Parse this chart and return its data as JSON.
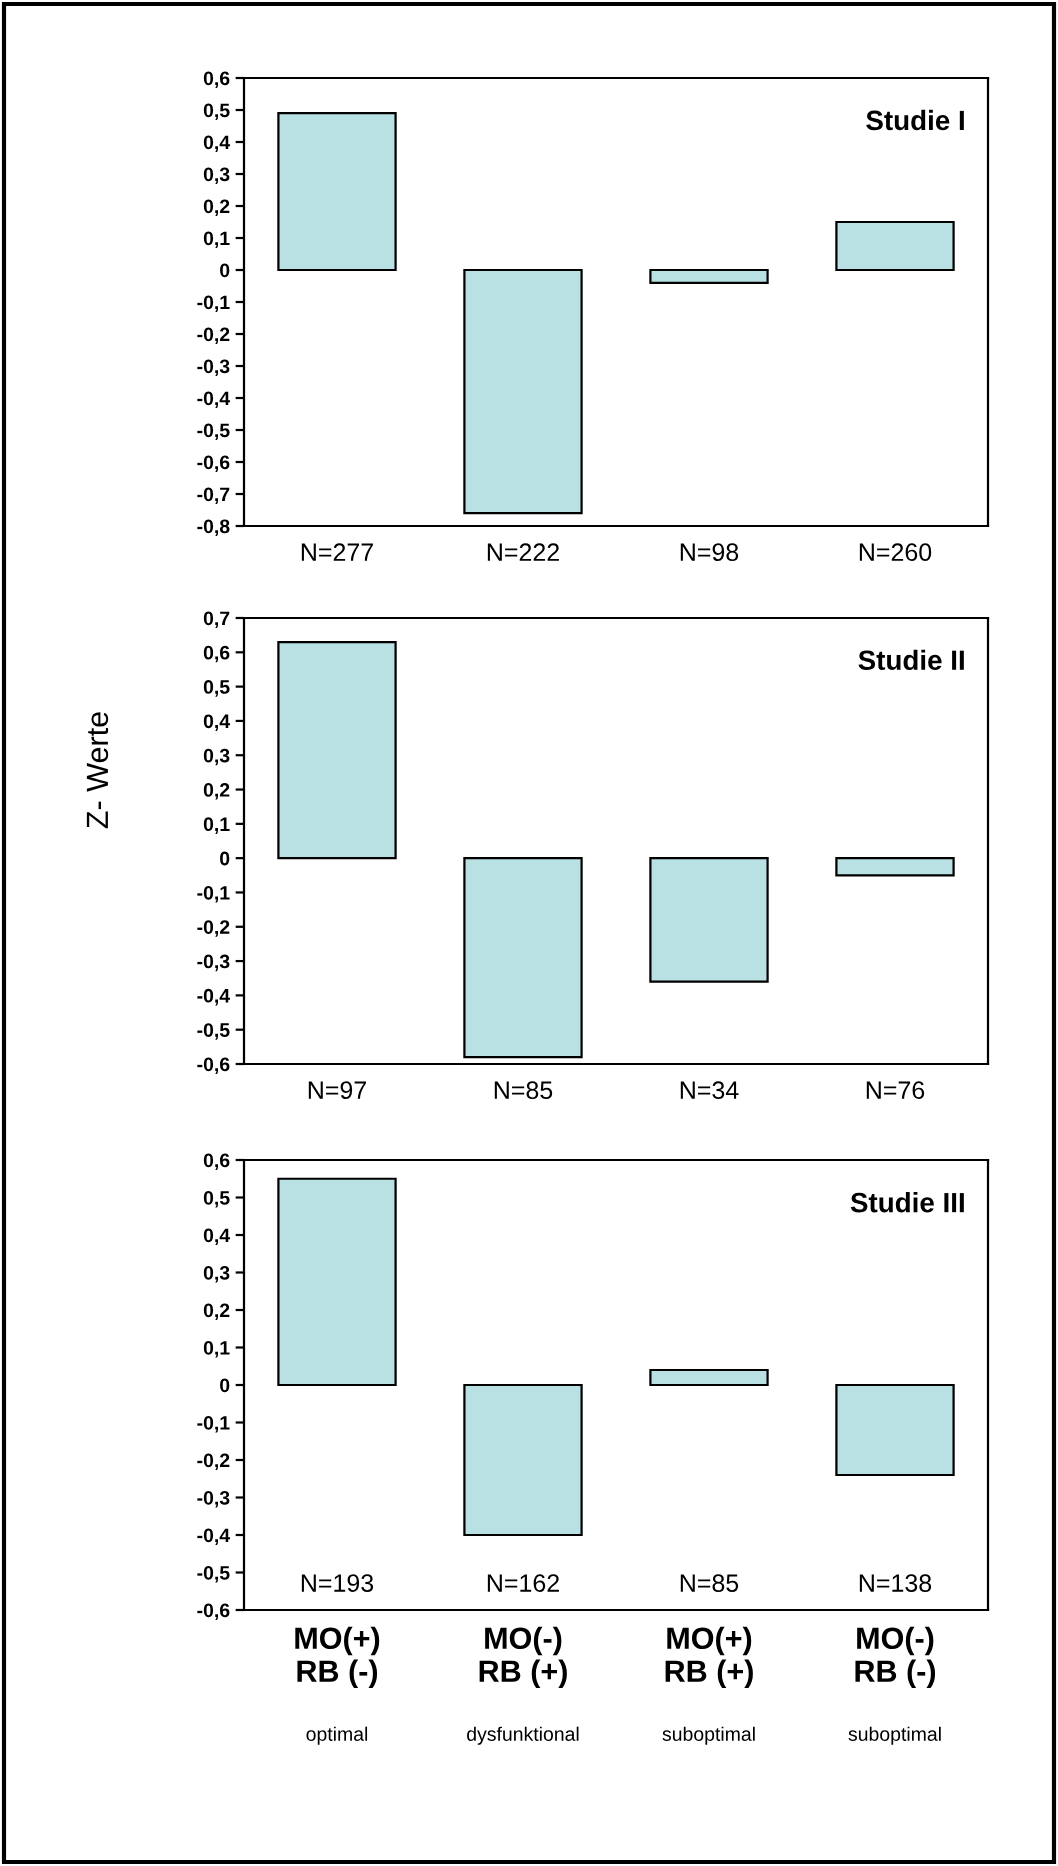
{
  "chart_data": [
    {
      "type": "bar",
      "title": "Studie I",
      "categories": [
        "N=277",
        "N=222",
        "N=98",
        "N=260"
      ],
      "values": [
        0.49,
        -0.76,
        -0.04,
        0.15
      ],
      "color": "#b9e0e2",
      "ylim": [
        -0.8,
        0.6
      ],
      "yticks": [
        {
          "value": -0.8,
          "label": "-0,8"
        },
        {
          "value": -0.7,
          "label": "-0,7"
        },
        {
          "value": -0.6,
          "label": "-0,6"
        },
        {
          "value": -0.5,
          "label": "-0,5"
        },
        {
          "value": -0.4,
          "label": "-0,4"
        },
        {
          "value": -0.3,
          "label": "-0,3"
        },
        {
          "value": -0.2,
          "label": "-0,2"
        },
        {
          "value": -0.1,
          "label": "-0,1"
        },
        0,
        {
          "value": 0.1,
          "label": "0,1"
        },
        {
          "value": 0.2,
          "label": "0,2"
        },
        {
          "value": 0.3,
          "label": "0,3"
        },
        {
          "value": 0.4,
          "label": "0,4"
        },
        {
          "value": 0.5,
          "label": "0,5"
        },
        {
          "value": 0.6,
          "label": "0,6"
        }
      ],
      "grid": false
    },
    {
      "type": "bar",
      "title": "Studie II",
      "ylabel": "Z- Werte",
      "categories": [
        "N=97",
        "N=85",
        "N=34",
        "N=76"
      ],
      "values": [
        0.63,
        -0.58,
        -0.36,
        -0.05
      ],
      "color": "#b9e0e2",
      "ylim": [
        -0.6,
        0.7
      ],
      "yticks": [
        {
          "value": -0.6,
          "label": "-0,6"
        },
        {
          "value": -0.5,
          "label": "-0,5"
        },
        {
          "value": -0.4,
          "label": "-0,4"
        },
        {
          "value": -0.3,
          "label": "-0,3"
        },
        {
          "value": -0.2,
          "label": "-0,2"
        },
        {
          "value": -0.1,
          "label": "-0,1"
        },
        0,
        {
          "value": 0.1,
          "label": "0,1"
        },
        {
          "value": 0.2,
          "label": "0,2"
        },
        {
          "value": 0.3,
          "label": "0,3"
        },
        {
          "value": 0.4,
          "label": "0,4"
        },
        {
          "value": 0.5,
          "label": "0,5"
        },
        {
          "value": 0.6,
          "label": "0,6"
        },
        {
          "value": 0.7,
          "label": "0,7"
        }
      ],
      "grid": false
    },
    {
      "type": "bar",
      "title": "Studie III",
      "categories": [
        "MO(+)\nRB (-)",
        "MO(-)\nRB (+)",
        "MO(+)\nRB (+)",
        "MO(-)\nRB (-)"
      ],
      "values": [
        0.55,
        -0.4,
        0.04,
        -0.24
      ],
      "color": "#b9e0e2",
      "ylim": [
        -0.6,
        0.6
      ],
      "yticks": [
        {
          "value": -0.6,
          "label": "-0,6"
        },
        {
          "value": -0.5,
          "label": "-0,5"
        },
        {
          "value": -0.4,
          "label": "-0,4"
        },
        {
          "value": -0.3,
          "label": "-0,3"
        },
        {
          "value": -0.2,
          "label": "-0,2"
        },
        {
          "value": -0.1,
          "label": "-0,1"
        },
        0,
        {
          "value": 0.1,
          "label": "0,1"
        },
        {
          "value": 0.2,
          "label": "0,2"
        },
        {
          "value": 0.3,
          "label": "0,3"
        },
        {
          "value": 0.4,
          "label": "0,4"
        },
        {
          "value": 0.5,
          "label": "0,5"
        },
        {
          "value": 0.6,
          "label": "0,6"
        }
      ],
      "grid": false,
      "annotations": [
        "N=193",
        "N=162",
        "N=85",
        "N=138",
        "optimal",
        "dysfunktional",
        "suboptimal",
        "suboptimal"
      ]
    }
  ]
}
